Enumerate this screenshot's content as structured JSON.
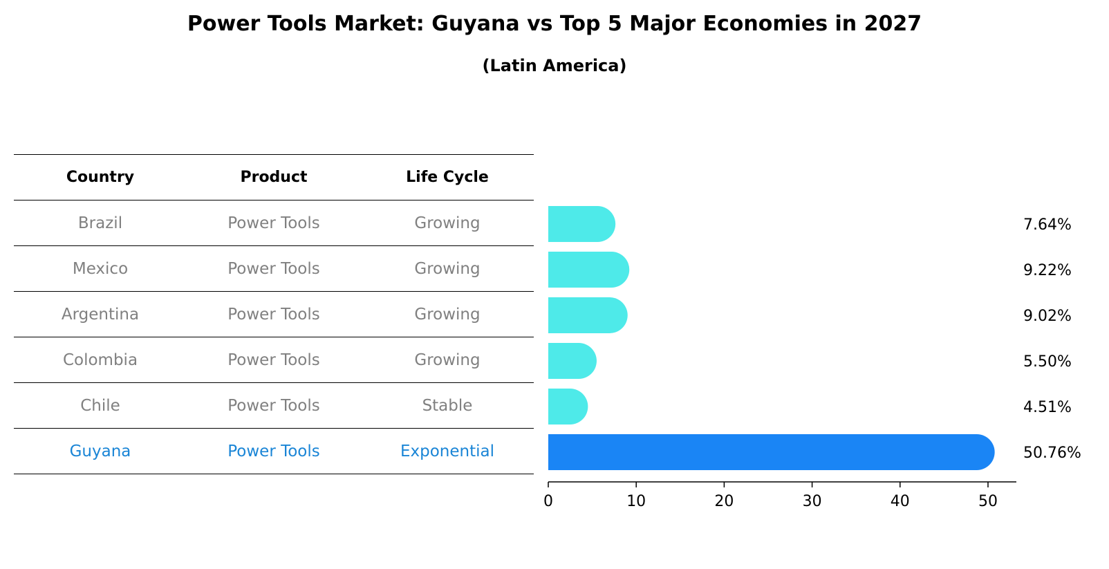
{
  "chart_data": {
    "type": "table+bar",
    "title": "Power Tools Market: Guyana vs Top 5 Major Economies in 2027",
    "subtitle": "(Latin America)",
    "table": {
      "columns": [
        "Country",
        "Product",
        "Life Cycle"
      ],
      "rows": [
        {
          "country": "Brazil",
          "product": "Power Tools",
          "life_cycle": "Growing"
        },
        {
          "country": "Mexico",
          "product": "Power Tools",
          "life_cycle": "Growing"
        },
        {
          "country": "Argentina",
          "product": "Power Tools",
          "life_cycle": "Growing"
        },
        {
          "country": "Colombia",
          "product": "Power Tools",
          "life_cycle": "Growing"
        },
        {
          "country": "Chile",
          "product": "Power Tools",
          "life_cycle": "Stable"
        },
        {
          "country": "Guyana",
          "product": "Power Tools",
          "life_cycle": "Exponential"
        }
      ],
      "highlight_row": 5
    },
    "categories": [
      "Brazil",
      "Mexico",
      "Argentina",
      "Colombia",
      "Chile",
      "Guyana"
    ],
    "values": [
      7.64,
      9.22,
      9.02,
      5.5,
      4.51,
      50.76
    ],
    "value_labels": [
      "7.64%",
      "9.22%",
      "9.02%",
      "5.50%",
      "4.51%",
      "50.76%"
    ],
    "xlim": [
      0,
      53.3
    ],
    "xticks": [
      0,
      10,
      20,
      30,
      40,
      50
    ],
    "colors": {
      "bar": "#4eeae9",
      "highlight_bar": "#1a85f5",
      "highlight_text": "#1a85d6",
      "muted_text": "#808080",
      "axis": "#000000"
    }
  }
}
